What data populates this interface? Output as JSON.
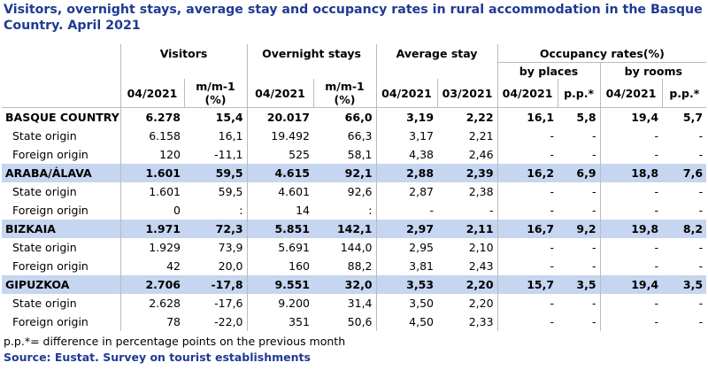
{
  "title": "Visitors, overnight stays, average stay and occupancy rates in rural accommodation in the Basque Country. April 2021",
  "headers": {
    "visitors": "Visitors",
    "overnight_stays": "Overnight stays",
    "average_stay": "Average stay",
    "occupancy": "Occupancy rates(%)",
    "by_places": "by places",
    "by_rooms": "by rooms",
    "col_0421": "04/2021",
    "col_mm1_a": "m/m-1",
    "col_mm1_b": "(%)",
    "col_0321": "03/2021",
    "col_pp": "p.p.*"
  },
  "rows": [
    {
      "label": "BASQUE COUNTRY",
      "type": "region",
      "cells": [
        "6.278",
        "15,4",
        "20.017",
        "66,0",
        "3,19",
        "2,22",
        "16,1",
        "5,8",
        "19,4",
        "5,7"
      ]
    },
    {
      "label": "State origin",
      "type": "sub",
      "cells": [
        "6.158",
        "16,1",
        "19.492",
        "66,3",
        "3,17",
        "2,21",
        "-",
        "-",
        "-",
        "-"
      ]
    },
    {
      "label": "Foreign origin",
      "type": "sub",
      "cells": [
        "120",
        "-11,1",
        "525",
        "58,1",
        "4,38",
        "2,46",
        "-",
        "-",
        "-",
        "-"
      ]
    },
    {
      "label": "ARABA/ÁLAVA",
      "type": "region",
      "cells": [
        "1.601",
        "59,5",
        "4.615",
        "92,1",
        "2,88",
        "2,39",
        "16,2",
        "6,9",
        "18,8",
        "7,6"
      ]
    },
    {
      "label": "State origin",
      "type": "sub",
      "cells": [
        "1.601",
        "59,5",
        "4.601",
        "92,6",
        "2,87",
        "2,38",
        "-",
        "-",
        "-",
        "-"
      ]
    },
    {
      "label": "Foreign origin",
      "type": "sub",
      "cells": [
        "0",
        ":",
        "14",
        ":",
        "-",
        "-",
        "-",
        "-",
        "-",
        "-"
      ]
    },
    {
      "label": "BIZKAIA",
      "type": "region",
      "cells": [
        "1.971",
        "72,3",
        "5.851",
        "142,1",
        "2,97",
        "2,11",
        "16,7",
        "9,2",
        "19,8",
        "8,2"
      ]
    },
    {
      "label": "State origin",
      "type": "sub",
      "cells": [
        "1.929",
        "73,9",
        "5.691",
        "144,0",
        "2,95",
        "2,10",
        "-",
        "-",
        "-",
        "-"
      ]
    },
    {
      "label": "Foreign origin",
      "type": "sub",
      "cells": [
        "42",
        "20,0",
        "160",
        "88,2",
        "3,81",
        "2,43",
        "-",
        "-",
        "-",
        "-"
      ]
    },
    {
      "label": "GIPUZKOA",
      "type": "region",
      "cells": [
        "2.706",
        "-17,8",
        "9.551",
        "32,0",
        "3,53",
        "2,20",
        "15,7",
        "3,5",
        "19,4",
        "3,5"
      ]
    },
    {
      "label": "State origin",
      "type": "sub",
      "cells": [
        "2.628",
        "-17,6",
        "9.200",
        "31,4",
        "3,50",
        "2,20",
        "-",
        "-",
        "-",
        "-"
      ]
    },
    {
      "label": "Foreign origin",
      "type": "sub",
      "cells": [
        "78",
        "-22,0",
        "351",
        "50,6",
        "4,50",
        "2,33",
        "-",
        "-",
        "-",
        "-"
      ]
    }
  ],
  "footnote": "p.p.*= difference in percentage points on the previous month",
  "source": "Source: Eustat. Survey on tourist establishments"
}
